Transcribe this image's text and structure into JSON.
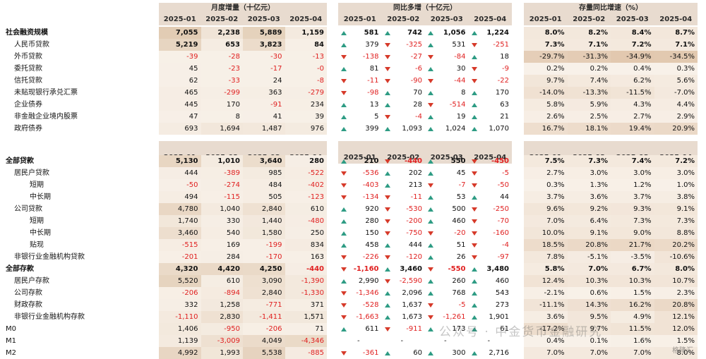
{
  "sections": {
    "s1": {
      "h1": "月度增量（十亿元）",
      "h2": "同比多增（十亿元）",
      "h3": "存量同比增速（%）"
    },
    "s2": {
      "h1": "",
      "h2": "",
      "h3": ""
    }
  },
  "months": [
    "2025-01",
    "2025-02",
    "2025-03",
    "2025-04"
  ],
  "table1": [
    {
      "label": "社会融资规模",
      "indent": 0,
      "bold": true,
      "m": [
        "7,055",
        "2,238",
        "5,889",
        "1,159"
      ],
      "y": [
        "581",
        "742",
        "1,056",
        "1,224"
      ],
      "ya": [
        "up",
        "up",
        "up",
        "up"
      ],
      "g": [
        "8.0%",
        "8.2%",
        "8.4%",
        "8.7%"
      ]
    },
    {
      "label": "人民币贷款",
      "indent": 1,
      "bold": false,
      "mb": true,
      "m": [
        "5,219",
        "653",
        "3,823",
        "84"
      ],
      "y": [
        "379",
        "-325",
        "531",
        "-251"
      ],
      "ya": [
        "up",
        "dn",
        "up",
        "dn"
      ],
      "g": [
        "7.3%",
        "7.1%",
        "7.2%",
        "7.1%"
      ],
      "gb": true
    },
    {
      "label": "外币贷款",
      "indent": 1,
      "m": [
        "-39",
        "-28",
        "-30",
        "-13"
      ],
      "y": [
        "-138",
        "-27",
        "-84",
        "18"
      ],
      "ya": [
        "dn",
        "dn",
        "dn",
        "up"
      ],
      "g": [
        "-29.7%",
        "-31.3%",
        "-34.9%",
        "-34.5%"
      ]
    },
    {
      "label": "委托贷款",
      "indent": 1,
      "m": [
        "45",
        "-23",
        "-17",
        "-0"
      ],
      "y": [
        "81",
        "-6",
        "30",
        "-9"
      ],
      "ya": [
        "up",
        "dn",
        "up",
        "dn"
      ],
      "g": [
        "0.2%",
        "0.2%",
        "0.4%",
        "0.3%"
      ]
    },
    {
      "label": "信托贷款",
      "indent": 1,
      "m": [
        "62",
        "-33",
        "24",
        "-8"
      ],
      "y": [
        "-11",
        "-90",
        "-44",
        "-22"
      ],
      "ya": [
        "dn",
        "dn",
        "dn",
        "dn"
      ],
      "g": [
        "9.7%",
        "7.4%",
        "6.2%",
        "5.6%"
      ]
    },
    {
      "label": "未贴现银行承兑汇票",
      "indent": 1,
      "m": [
        "465",
        "-299",
        "363",
        "-279"
      ],
      "y": [
        "-98",
        "70",
        "8",
        "170"
      ],
      "ya": [
        "dn",
        "up",
        "up",
        "up"
      ],
      "g": [
        "-14.0%",
        "-13.3%",
        "-11.5%",
        "-7.0%"
      ]
    },
    {
      "label": "企业债券",
      "indent": 1,
      "m": [
        "445",
        "170",
        "-91",
        "234"
      ],
      "y": [
        "13",
        "28",
        "-514",
        "63"
      ],
      "ya": [
        "up",
        "up",
        "dn",
        "up"
      ],
      "g": [
        "5.8%",
        "5.9%",
        "4.3%",
        "4.4%"
      ]
    },
    {
      "label": "非金融企业境内股票",
      "indent": 1,
      "m": [
        "47",
        "8",
        "41",
        "39"
      ],
      "y": [
        "5",
        "-4",
        "19",
        "21"
      ],
      "ya": [
        "up",
        "dn",
        "up",
        "up"
      ],
      "g": [
        "2.6%",
        "2.5%",
        "2.7%",
        "2.9%"
      ]
    },
    {
      "label": "政府债券",
      "indent": 1,
      "m": [
        "693",
        "1,694",
        "1,487",
        "976"
      ],
      "y": [
        "399",
        "1,093",
        "1,024",
        "1,070"
      ],
      "ya": [
        "up",
        "up",
        "up",
        "up"
      ],
      "g": [
        "16.7%",
        "18.1%",
        "19.4%",
        "20.9%"
      ]
    }
  ],
  "table2": [
    {
      "label": "全部贷款",
      "indent": 0,
      "bold": true,
      "m": [
        "5,130",
        "1,010",
        "3,640",
        "280"
      ],
      "y": [
        "210",
        "-440",
        "550",
        "-450"
      ],
      "ya": [
        "up",
        "dn",
        "up",
        "dn"
      ],
      "g": [
        "7.5%",
        "7.3%",
        "7.4%",
        "7.2%"
      ]
    },
    {
      "label": "居民户贷款",
      "indent": 1,
      "m": [
        "444",
        "-389",
        "985",
        "-522"
      ],
      "y": [
        "-536",
        "202",
        "45",
        "-5"
      ],
      "ya": [
        "dn",
        "up",
        "up",
        "dn"
      ],
      "g": [
        "2.7%",
        "3.0%",
        "3.0%",
        "3.0%"
      ]
    },
    {
      "label": "短期",
      "indent": 2,
      "m": [
        "-50",
        "-274",
        "484",
        "-402"
      ],
      "y": [
        "-403",
        "213",
        "-7",
        "-50"
      ],
      "ya": [
        "dn",
        "up",
        "dn",
        "dn"
      ],
      "g": [
        "0.3%",
        "1.3%",
        "1.2%",
        "1.0%"
      ]
    },
    {
      "label": "中长期",
      "indent": 2,
      "m": [
        "494",
        "-115",
        "505",
        "-123"
      ],
      "y": [
        "-134",
        "-11",
        "53",
        "44"
      ],
      "ya": [
        "dn",
        "dn",
        "up",
        "up"
      ],
      "g": [
        "3.7%",
        "3.6%",
        "3.7%",
        "3.8%"
      ]
    },
    {
      "label": "公司贷款",
      "indent": 1,
      "m": [
        "4,780",
        "1,040",
        "2,840",
        "610"
      ],
      "y": [
        "920",
        "-530",
        "500",
        "-250"
      ],
      "ya": [
        "up",
        "dn",
        "up",
        "dn"
      ],
      "g": [
        "9.6%",
        "9.2%",
        "9.3%",
        "9.1%"
      ]
    },
    {
      "label": "短期",
      "indent": 2,
      "m": [
        "1,740",
        "330",
        "1,440",
        "-480"
      ],
      "y": [
        "280",
        "-200",
        "460",
        "-70"
      ],
      "ya": [
        "up",
        "dn",
        "up",
        "dn"
      ],
      "g": [
        "7.0%",
        "6.4%",
        "7.3%",
        "7.3%"
      ]
    },
    {
      "label": "中长期",
      "indent": 2,
      "m": [
        "3,460",
        "540",
        "1,580",
        "250"
      ],
      "y": [
        "150",
        "-750",
        "-20",
        "-160"
      ],
      "ya": [
        "up",
        "dn",
        "dn",
        "dn"
      ],
      "g": [
        "10.0%",
        "9.1%",
        "9.0%",
        "8.8%"
      ]
    },
    {
      "label": "贴现",
      "indent": 2,
      "m": [
        "-515",
        "169",
        "-199",
        "834"
      ],
      "y": [
        "458",
        "444",
        "51",
        "-4"
      ],
      "ya": [
        "up",
        "up",
        "up",
        "dn"
      ],
      "g": [
        "18.5%",
        "20.8%",
        "21.7%",
        "20.2%"
      ]
    },
    {
      "label": "非银行业金融机构贷款",
      "indent": 1,
      "m": [
        "-201",
        "284",
        "-170",
        "163"
      ],
      "y": [
        "-226",
        "-120",
        "26",
        "-97"
      ],
      "ya": [
        "dn",
        "dn",
        "up",
        "dn"
      ],
      "g": [
        "7.8%",
        "-5.1%",
        "-3.5%",
        "-10.6%"
      ]
    },
    {
      "label": "全部存款",
      "indent": 0,
      "bold": true,
      "m": [
        "4,320",
        "4,420",
        "4,250",
        "-440"
      ],
      "y": [
        "-1,160",
        "3,460",
        "-550",
        "3,480"
      ],
      "ya": [
        "dn",
        "up",
        "dn",
        "up"
      ],
      "g": [
        "5.8%",
        "7.0%",
        "6.7%",
        "8.0%"
      ]
    },
    {
      "label": "居民户存款",
      "indent": 1,
      "m": [
        "5,520",
        "610",
        "3,090",
        "-1,390"
      ],
      "y": [
        "2,990",
        "-2,590",
        "260",
        "460"
      ],
      "ya": [
        "up",
        "dn",
        "up",
        "up"
      ],
      "g": [
        "12.4%",
        "10.3%",
        "10.3%",
        "10.7%"
      ]
    },
    {
      "label": "公司存款",
      "indent": 1,
      "m": [
        "-206",
        "-894",
        "2,840",
        "-1,330"
      ],
      "y": [
        "-1,346",
        "2,096",
        "768",
        "543"
      ],
      "ya": [
        "dn",
        "up",
        "up",
        "up"
      ],
      "g": [
        "-2.1%",
        "0.6%",
        "1.5%",
        "2.3%"
      ]
    },
    {
      "label": "财政存款",
      "indent": 1,
      "m": [
        "332",
        "1,258",
        "-771",
        "371"
      ],
      "y": [
        "-528",
        "1,637",
        "-5",
        "273"
      ],
      "ya": [
        "dn",
        "up",
        "dn",
        "up"
      ],
      "g": [
        "-11.1%",
        "14.3%",
        "16.2%",
        "20.8%"
      ]
    },
    {
      "label": "非银行业金融机构存款",
      "indent": 1,
      "m": [
        "-1,110",
        "2,830",
        "-1,411",
        "1,571"
      ],
      "y": [
        "-1,663",
        "1,673",
        "-1,261",
        "1,901"
      ],
      "ya": [
        "dn",
        "up",
        "dn",
        "up"
      ],
      "g": [
        "3.6%",
        "9.5%",
        "4.9%",
        "12.1%"
      ]
    },
    {
      "label": "M0",
      "indent": 0,
      "m": [
        "1,406",
        "-950",
        "-206",
        "71"
      ],
      "y": [
        "611",
        "-911",
        "173",
        "61"
      ],
      "ya": [
        "up",
        "dn",
        "up",
        "up"
      ],
      "g": [
        "-17.2%",
        "9.7%",
        "11.5%",
        "12.0%"
      ]
    },
    {
      "label": "M1",
      "indent": 0,
      "m": [
        "1,139",
        "-3,009",
        "4,049",
        "-4,346"
      ],
      "y": [
        "-",
        "-",
        "-",
        "-"
      ],
      "ya": [
        "",
        "",
        "",
        ""
      ],
      "g": [
        "0.4%",
        "0.1%",
        "1.6%",
        "1.5%"
      ]
    },
    {
      "label": "M2",
      "indent": 0,
      "m": [
        "4,992",
        "1,993",
        "5,538",
        "-885"
      ],
      "y": [
        "-361",
        "60",
        "300",
        "2,716"
      ],
      "ya": [
        "dn",
        "up",
        "up",
        "up"
      ],
      "g": [
        "7.0%",
        "7.0%",
        "7.0%",
        "8.0%"
      ]
    }
  ],
  "watermark": {
    "text": "公众号 · 中金货币金融研究",
    "corner": "格隆汇"
  }
}
